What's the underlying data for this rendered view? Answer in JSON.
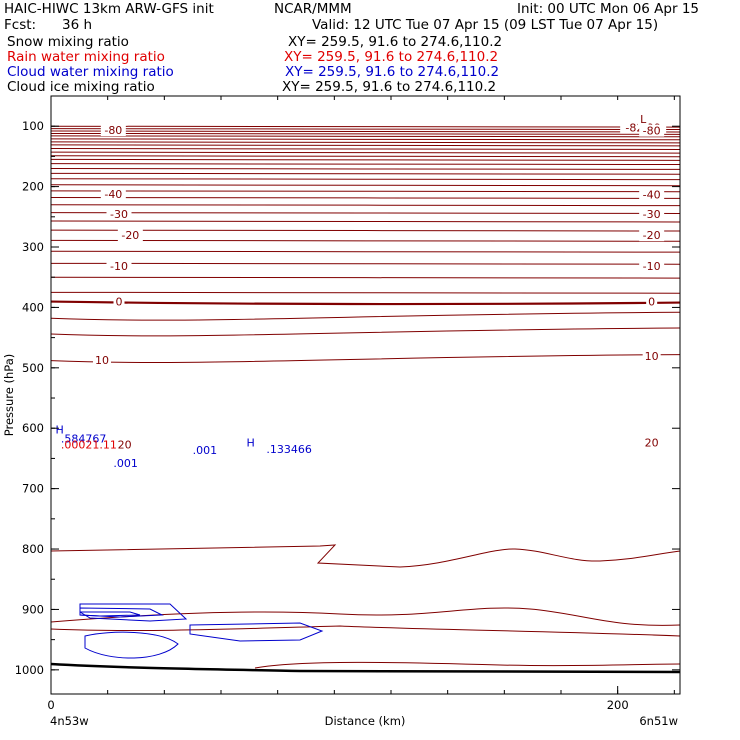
{
  "header": {
    "title": "HAIC-HIWC 13km ARW-GFS init",
    "org": "NCAR/MMM",
    "init": "Init: 00 UTC Mon 06 Apr 15",
    "fcst_label": "Fcst:",
    "fcst_value": "36 h",
    "valid": "Valid: 12 UTC Tue 07 Apr 15 (09 LST Tue 07 Apr 15)"
  },
  "fields": [
    {
      "name": "Snow mixing ratio",
      "xy": "XY= 259.5, 91.6 to 274.6,110.2",
      "color": "#000000"
    },
    {
      "name": "Rain water mixing ratio",
      "xy": "XY= 259.5, 91.6 to 274.6,110.2",
      "color": "#e00000"
    },
    {
      "name": "Cloud water mixing ratio",
      "xy": "XY= 259.5, 91.6 to 274.6,110.2",
      "color": "#0000cc"
    },
    {
      "name": "Cloud ice mixing ratio",
      "xy": "XY= 259.5, 91.6 to 274.6,110.2",
      "color": "#000000"
    }
  ],
  "chart_data": {
    "type": "line",
    "ylabel": "Pressure (hPa)",
    "xlabel": "Distance (km)",
    "y_ticks": [
      100,
      200,
      300,
      400,
      500,
      600,
      700,
      800,
      900,
      1000
    ],
    "x_ticks": [
      0,
      200
    ],
    "ylim": [
      1040,
      50
    ],
    "xlim": [
      0,
      222
    ],
    "left_endpoint_label": "4n53w",
    "right_endpoint_label": "6n51w",
    "temperature_contour_color": "#800000",
    "cloud_contour_color": "#0000cc",
    "temperature_levels": [
      {
        "value": -80,
        "p": 110
      },
      {
        "value": -40,
        "p": 212
      },
      {
        "value": -30,
        "p": 246
      },
      {
        "value": -20,
        "p": 282
      },
      {
        "value": -10,
        "p": 332
      },
      {
        "value": 0,
        "p": 392
      },
      {
        "value": 10,
        "p": 488
      },
      {
        "value": 20,
        "p": 628
      }
    ],
    "contour_labels": [
      {
        "text": "-80",
        "x": 22,
        "p": 108
      },
      {
        "text": "-82.29",
        "x": 209,
        "p": 104
      },
      {
        "text": "L",
        "x": 209,
        "p": 90
      },
      {
        "text": "-80",
        "x": 212,
        "p": 109
      },
      {
        "text": "-40",
        "x": 22,
        "p": 214
      },
      {
        "text": "-40",
        "x": 212,
        "p": 215
      },
      {
        "text": "-30",
        "x": 24,
        "p": 247
      },
      {
        "text": "-30",
        "x": 212,
        "p": 247
      },
      {
        "text": "-20",
        "x": 28,
        "p": 282
      },
      {
        "text": "-20",
        "x": 212,
        "p": 282
      },
      {
        "text": "-10",
        "x": 24,
        "p": 333
      },
      {
        "text": "-10",
        "x": 212,
        "p": 333
      },
      {
        "text": "0",
        "x": 24,
        "p": 392
      },
      {
        "text": "0",
        "x": 212,
        "p": 392
      },
      {
        "text": "10",
        "x": 18,
        "p": 489
      },
      {
        "text": "10",
        "x": 212,
        "p": 482
      },
      {
        "text": "20",
        "x": 26,
        "p": 629
      },
      {
        "text": "20",
        "x": 212,
        "p": 625
      }
    ],
    "cloud_labels": [
      {
        "text": "H",
        "x": 1.6,
        "p": 604,
        "color": "#0000cc"
      },
      {
        "text": ".584767",
        "x": 3.5,
        "p": 619,
        "color": "#0000cc"
      },
      {
        "text": ".00021.11",
        "x": 3.5,
        "p": 629,
        "color": "#e00000"
      },
      {
        "text": "H",
        "x": 69,
        "p": 625,
        "color": "#0000cc"
      },
      {
        "text": ".133466",
        "x": 76,
        "p": 636,
        "color": "#0000cc"
      },
      {
        "text": ".001",
        "x": 50,
        "p": 638,
        "color": "#0000cc"
      },
      {
        "text": ".001",
        "x": 22,
        "p": 659,
        "color": "#0000cc"
      }
    ]
  }
}
